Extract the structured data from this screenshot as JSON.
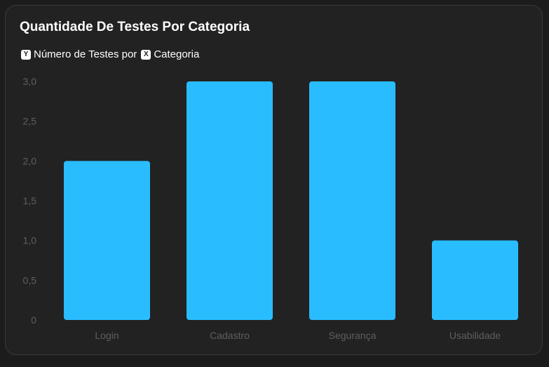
{
  "legend": {
    "y_key": "Y",
    "y_text": "Número de Testes por",
    "x_key": "X",
    "x_text": "Categoria"
  },
  "chart_data": {
    "type": "bar",
    "title": "Quantidade De Testes Por Categoria",
    "categories": [
      "Login",
      "Cadastro",
      "Segurança",
      "Usabilidade"
    ],
    "values": [
      2,
      3,
      3,
      1
    ],
    "ylim": [
      0,
      3
    ],
    "y_ticks": [
      "0",
      "0,5",
      "1,0",
      "1,5",
      "2,0",
      "2,5",
      "3,0"
    ],
    "bar_color": "#29bdff",
    "grid": false
  }
}
